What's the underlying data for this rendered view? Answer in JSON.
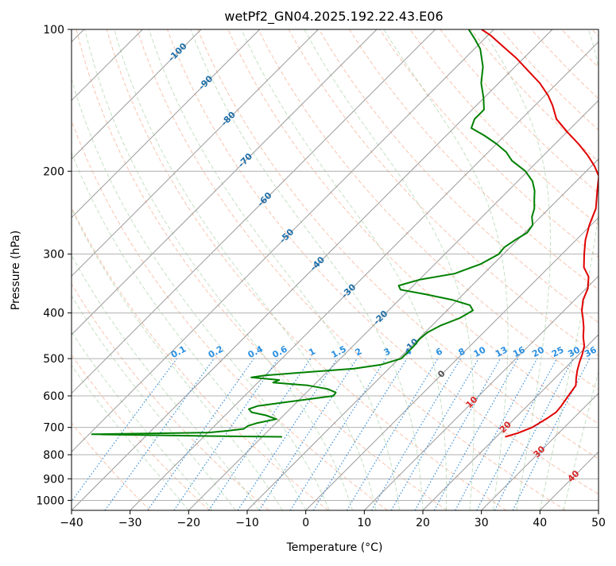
{
  "chart_data": {
    "type": "skew-t log-p",
    "title": "wetPf2_GN04.2025.192.22.43.E06",
    "xlabel": "Temperature (°C)",
    "ylabel": "Pressure (hPa)",
    "xlim": [
      -40,
      50
    ],
    "ylim": [
      1050,
      100
    ],
    "y_scale": "log",
    "grid": true,
    "x_ticks": [
      "−40",
      "−30",
      "−20",
      "−10",
      "0",
      "10",
      "20",
      "30",
      "40",
      "50"
    ],
    "y_ticks": [
      {
        "p": 100,
        "label": "100"
      },
      {
        "p": 200,
        "label": "200"
      },
      {
        "p": 300,
        "label": "300"
      },
      {
        "p": 400,
        "label": "400"
      },
      {
        "p": 500,
        "label": "500"
      },
      {
        "p": 600,
        "label": "600"
      },
      {
        "p": 700,
        "label": "700"
      },
      {
        "p": 800,
        "label": "800"
      },
      {
        "p": 900,
        "label": "900"
      },
      {
        "p": 1000,
        "label": "1000"
      }
    ],
    "isotherm_labels": [
      {
        "label": "-100",
        "p": 112
      },
      {
        "label": "-90",
        "p": 130
      },
      {
        "label": "-80",
        "p": 155
      },
      {
        "label": "-70",
        "p": 190
      },
      {
        "label": "-60",
        "p": 230
      },
      {
        "label": "-50",
        "p": 275
      },
      {
        "label": "-40",
        "p": 315
      },
      {
        "label": "-30",
        "p": 360
      },
      {
        "label": "-20",
        "p": 410
      },
      {
        "label": "-10",
        "p": 470
      },
      {
        "label": "0",
        "p": 540
      },
      {
        "label": "10",
        "p": 620
      },
      {
        "label": "20",
        "p": 700
      },
      {
        "label": "30",
        "p": 790
      },
      {
        "label": "40",
        "p": 890
      }
    ],
    "mixing_ratio_labels": [
      "0.1",
      "0.2",
      "0.4",
      "0.6",
      "1",
      "1.5",
      "2",
      "3",
      "4",
      "6",
      "8",
      "10",
      "13",
      "16",
      "20",
      "25",
      "30",
      "36"
    ],
    "mixing_ratio_values": [
      0.1,
      0.2,
      0.4,
      0.6,
      1,
      1.5,
      2,
      3,
      4,
      6,
      8,
      10,
      13,
      16,
      20,
      25,
      30,
      36
    ],
    "series": [
      {
        "role": "temperature",
        "color": "#e00000",
        "points": [
          [
            733,
            21.5
          ],
          [
            720,
            23.0
          ],
          [
            700,
            24.5
          ],
          [
            670,
            25.5
          ],
          [
            650,
            26.0
          ],
          [
            630,
            25.8
          ],
          [
            600,
            25.3
          ],
          [
            570,
            24.8
          ],
          [
            550,
            23.6
          ],
          [
            530,
            22.5
          ],
          [
            510,
            21.5
          ],
          [
            490,
            20.6
          ],
          [
            470,
            19.5
          ],
          [
            450,
            17.8
          ],
          [
            430,
            16.3
          ],
          [
            410,
            14.5
          ],
          [
            395,
            13.0
          ],
          [
            375,
            11.4
          ],
          [
            355,
            10.3
          ],
          [
            335,
            8.4
          ],
          [
            320,
            6.0
          ],
          [
            300,
            3.8
          ],
          [
            280,
            1.6
          ],
          [
            260,
            -0.3
          ],
          [
            240,
            -2.0
          ],
          [
            220,
            -4.8
          ],
          [
            205,
            -7.0
          ],
          [
            195,
            -9.5
          ],
          [
            185,
            -12.5
          ],
          [
            175,
            -16.0
          ],
          [
            165,
            -20.0
          ],
          [
            155,
            -24.0
          ],
          [
            145,
            -27.0
          ],
          [
            138,
            -29.5
          ],
          [
            130,
            -33.0
          ],
          [
            122,
            -37.3
          ],
          [
            115,
            -41.3
          ],
          [
            108,
            -46.0
          ],
          [
            103,
            -49.5
          ],
          [
            100,
            -52.1
          ]
        ]
      },
      {
        "role": "dewpoint",
        "color": "#008000",
        "points": [
          [
            733,
            -16.6
          ],
          [
            730,
            -29.6
          ],
          [
            724,
            -49.5
          ],
          [
            718,
            -30.0
          ],
          [
            712,
            -27.0
          ],
          [
            705,
            -24.5
          ],
          [
            695,
            -24.3
          ],
          [
            685,
            -23.2
          ],
          [
            672,
            -20.6
          ],
          [
            660,
            -23.0
          ],
          [
            650,
            -26.0
          ],
          [
            640,
            -27.0
          ],
          [
            630,
            -26.0
          ],
          [
            615,
            -20.5
          ],
          [
            600,
            -14.8
          ],
          [
            590,
            -15.0
          ],
          [
            580,
            -17.0
          ],
          [
            570,
            -21.0
          ],
          [
            562,
            -27.4
          ],
          [
            555,
            -26.8
          ],
          [
            548,
            -32.0
          ],
          [
            543,
            -30.0
          ],
          [
            535,
            -24.0
          ],
          [
            525,
            -16.0
          ],
          [
            515,
            -12.0
          ],
          [
            500,
            -9.6
          ],
          [
            485,
            -9.6
          ],
          [
            470,
            -9.6
          ],
          [
            455,
            -9.8
          ],
          [
            440,
            -9.6
          ],
          [
            425,
            -8.5
          ],
          [
            410,
            -6.5
          ],
          [
            395,
            -5.6
          ],
          [
            385,
            -7.0
          ],
          [
            375,
            -11.0
          ],
          [
            365,
            -16.5
          ],
          [
            357,
            -21.5
          ],
          [
            350,
            -22.5
          ],
          [
            340,
            -20.0
          ],
          [
            330,
            -15.0
          ],
          [
            315,
            -12.2
          ],
          [
            300,
            -10.8
          ],
          [
            290,
            -11.0
          ],
          [
            280,
            -10.4
          ],
          [
            270,
            -9.6
          ],
          [
            260,
            -10.0
          ],
          [
            250,
            -11.5
          ],
          [
            240,
            -12.5
          ],
          [
            230,
            -14.0
          ],
          [
            220,
            -15.5
          ],
          [
            210,
            -17.5
          ],
          [
            200,
            -20.4
          ],
          [
            190,
            -24.5
          ],
          [
            182,
            -27.0
          ],
          [
            175,
            -30.0
          ],
          [
            168,
            -33.5
          ],
          [
            162,
            -37.0
          ],
          [
            155,
            -38.0
          ],
          [
            148,
            -38.0
          ],
          [
            140,
            -40.0
          ],
          [
            130,
            -43.0
          ],
          [
            120,
            -45.5
          ],
          [
            110,
            -49.0
          ],
          [
            105,
            -51.5
          ],
          [
            100,
            -54.3
          ]
        ]
      }
    ]
  }
}
